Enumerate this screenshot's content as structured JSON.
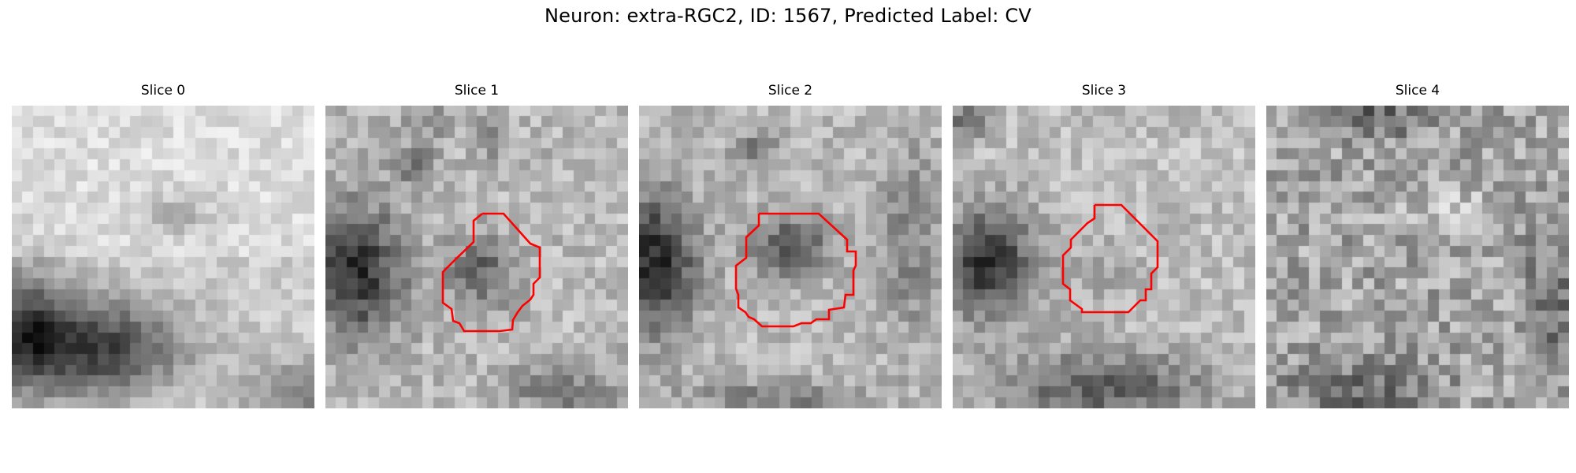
{
  "title": "Neuron: extra-RGC2, ID: 1567, Predicted Label: CV",
  "roi_color": "#ff0000",
  "colormap": "gray",
  "slices": [
    {
      "label": "Slice 0",
      "has_roi": false
    },
    {
      "label": "Slice 1",
      "has_roi": true
    },
    {
      "label": "Slice 2",
      "has_roi": true
    },
    {
      "label": "Slice 3",
      "has_roi": true
    },
    {
      "label": "Slice 4",
      "has_roi": false
    }
  ]
}
